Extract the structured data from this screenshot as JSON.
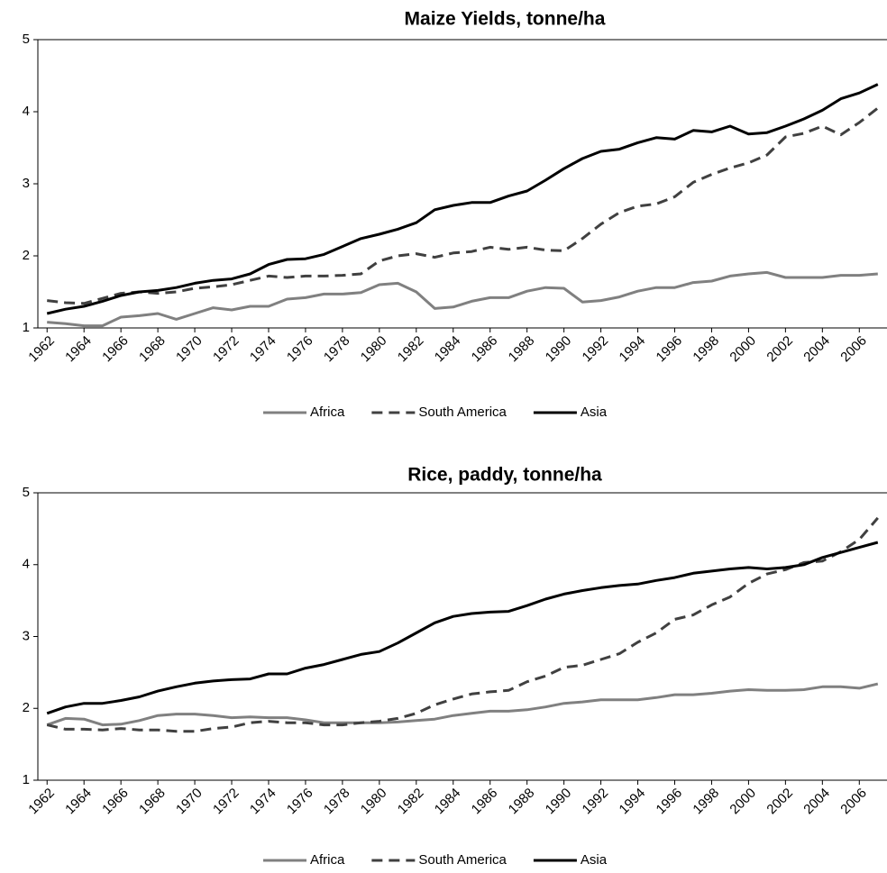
{
  "chart_data": [
    {
      "type": "line",
      "title": "Maize Yields, tonne/ha",
      "x": [
        1962,
        1963,
        1964,
        1965,
        1966,
        1967,
        1968,
        1969,
        1970,
        1971,
        1972,
        1973,
        1974,
        1975,
        1976,
        1977,
        1978,
        1979,
        1980,
        1981,
        1982,
        1983,
        1984,
        1985,
        1986,
        1987,
        1988,
        1989,
        1990,
        1991,
        1992,
        1993,
        1994,
        1995,
        1996,
        1997,
        1998,
        1999,
        2000,
        2001,
        2002,
        2003,
        2004,
        2005,
        2006,
        2007
      ],
      "xlim": [
        1961.5,
        2007.5
      ],
      "xticks": [
        1962,
        1964,
        1966,
        1968,
        1970,
        1972,
        1974,
        1976,
        1978,
        1980,
        1982,
        1984,
        1986,
        1988,
        1990,
        1992,
        1994,
        1996,
        1998,
        2000,
        2002,
        2004,
        2006
      ],
      "ylim": [
        1,
        5
      ],
      "yticks": [
        1,
        2,
        3,
        4,
        5
      ],
      "grid": false,
      "legend": "bottom",
      "series": [
        {
          "name": "Africa",
          "color": "#808080",
          "dash": false,
          "values": [
            1.08,
            1.06,
            1.03,
            1.03,
            1.15,
            1.17,
            1.2,
            1.12,
            1.2,
            1.28,
            1.25,
            1.3,
            1.3,
            1.4,
            1.42,
            1.47,
            1.47,
            1.49,
            1.6,
            1.62,
            1.5,
            1.27,
            1.29,
            1.37,
            1.42,
            1.42,
            1.51,
            1.56,
            1.55,
            1.36,
            1.38,
            1.43,
            1.51,
            1.56,
            1.56,
            1.63,
            1.65,
            1.72,
            1.75,
            1.77,
            1.7,
            1.7,
            1.7,
            1.73,
            1.73,
            1.75
          ]
        },
        {
          "name": "South America",
          "color": "#404040",
          "dash": true,
          "values": [
            1.38,
            1.35,
            1.34,
            1.41,
            1.48,
            1.5,
            1.48,
            1.5,
            1.55,
            1.57,
            1.6,
            1.66,
            1.72,
            1.7,
            1.72,
            1.72,
            1.73,
            1.75,
            1.93,
            2.0,
            2.03,
            1.98,
            2.04,
            2.06,
            2.12,
            2.09,
            2.12,
            2.08,
            2.07,
            2.24,
            2.44,
            2.6,
            2.69,
            2.72,
            2.82,
            3.02,
            3.13,
            3.22,
            3.29,
            3.4,
            3.65,
            3.7,
            3.8,
            3.68,
            3.85,
            4.05
          ]
        },
        {
          "name": "Asia",
          "color": "#000000",
          "dash": false,
          "values": [
            1.2,
            1.26,
            1.3,
            1.37,
            1.45,
            1.5,
            1.52,
            1.56,
            1.62,
            1.66,
            1.68,
            1.75,
            1.88,
            1.95,
            1.96,
            2.02,
            2.13,
            2.24,
            2.3,
            2.37,
            2.46,
            2.64,
            2.7,
            2.74,
            2.74,
            2.83,
            2.9,
            3.05,
            3.21,
            3.35,
            3.45,
            3.48,
            3.57,
            3.64,
            3.62,
            3.74,
            3.72,
            3.8,
            3.69,
            3.71,
            3.8,
            3.9,
            4.02,
            4.18,
            4.26,
            4.38
          ]
        }
      ]
    },
    {
      "type": "line",
      "title": "Rice, paddy, tonne/ha",
      "x": [
        1962,
        1963,
        1964,
        1965,
        1966,
        1967,
        1968,
        1969,
        1970,
        1971,
        1972,
        1973,
        1974,
        1975,
        1976,
        1977,
        1978,
        1979,
        1980,
        1981,
        1982,
        1983,
        1984,
        1985,
        1986,
        1987,
        1988,
        1989,
        1990,
        1991,
        1992,
        1993,
        1994,
        1995,
        1996,
        1997,
        1998,
        1999,
        2000,
        2001,
        2002,
        2003,
        2004,
        2005,
        2006,
        2007
      ],
      "xlim": [
        1961.5,
        2007.5
      ],
      "xticks": [
        1962,
        1964,
        1966,
        1968,
        1970,
        1972,
        1974,
        1976,
        1978,
        1980,
        1982,
        1984,
        1986,
        1988,
        1990,
        1992,
        1994,
        1996,
        1998,
        2000,
        2002,
        2004,
        2006
      ],
      "ylim": [
        1,
        5
      ],
      "yticks": [
        1,
        2,
        3,
        4,
        5
      ],
      "grid": false,
      "legend": "bottom",
      "series": [
        {
          "name": "Africa",
          "color": "#808080",
          "dash": false,
          "values": [
            1.77,
            1.86,
            1.85,
            1.77,
            1.78,
            1.83,
            1.9,
            1.92,
            1.92,
            1.9,
            1.87,
            1.88,
            1.87,
            1.87,
            1.84,
            1.8,
            1.8,
            1.8,
            1.8,
            1.81,
            1.83,
            1.85,
            1.9,
            1.93,
            1.96,
            1.96,
            1.98,
            2.02,
            2.07,
            2.09,
            2.12,
            2.12,
            2.12,
            2.15,
            2.19,
            2.19,
            2.21,
            2.24,
            2.26,
            2.25,
            2.25,
            2.26,
            2.3,
            2.3,
            2.28,
            2.34
          ]
        },
        {
          "name": "South America",
          "color": "#404040",
          "dash": true,
          "values": [
            1.77,
            1.71,
            1.71,
            1.7,
            1.72,
            1.7,
            1.7,
            1.68,
            1.68,
            1.72,
            1.74,
            1.8,
            1.82,
            1.8,
            1.8,
            1.77,
            1.77,
            1.8,
            1.82,
            1.86,
            1.93,
            2.05,
            2.13,
            2.2,
            2.23,
            2.25,
            2.37,
            2.45,
            2.57,
            2.6,
            2.68,
            2.76,
            2.92,
            3.05,
            3.24,
            3.3,
            3.44,
            3.55,
            3.74,
            3.87,
            3.93,
            4.03,
            4.05,
            4.18,
            4.35,
            4.65
          ]
        },
        {
          "name": "Asia",
          "color": "#000000",
          "dash": false,
          "values": [
            1.93,
            2.02,
            2.07,
            2.07,
            2.11,
            2.16,
            2.24,
            2.3,
            2.35,
            2.38,
            2.4,
            2.41,
            2.48,
            2.48,
            2.56,
            2.61,
            2.68,
            2.75,
            2.79,
            2.91,
            3.05,
            3.19,
            3.28,
            3.32,
            3.34,
            3.35,
            3.43,
            3.52,
            3.59,
            3.64,
            3.68,
            3.71,
            3.73,
            3.78,
            3.82,
            3.88,
            3.91,
            3.94,
            3.96,
            3.94,
            3.96,
            4.0,
            4.1,
            4.17,
            4.24,
            4.31
          ]
        }
      ]
    }
  ]
}
